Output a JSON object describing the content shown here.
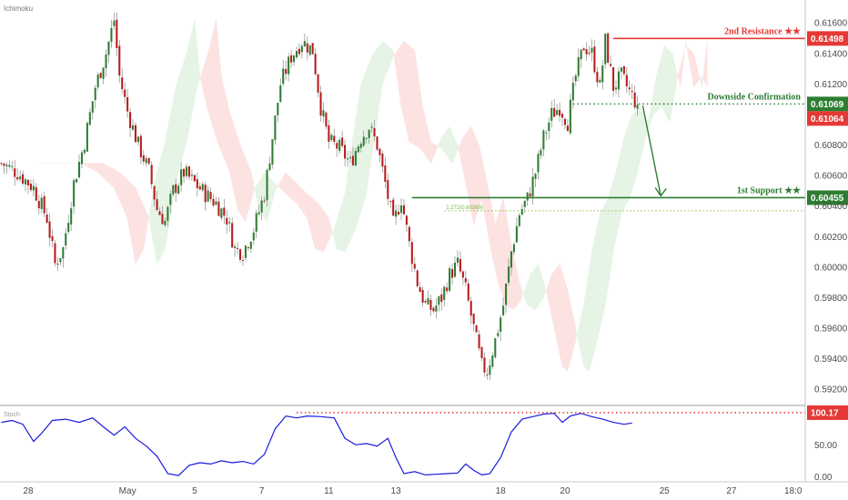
{
  "indicator_label": "Ichimoku",
  "stoch_label": "Stoch",
  "colors": {
    "up": "#2e7d32",
    "down": "#b71c1c",
    "wick": "#555555",
    "cloud_bull": "#e6f4e6",
    "cloud_bear": "#fde2e2",
    "resistance": "#e53935",
    "support": "#2e7d32",
    "stoch_line": "#1a1adf"
  },
  "chart_data": [
    {
      "type": "candlestick",
      "ylim": [
        0.591,
        0.6175
      ],
      "y_ticks": [
        "0.61600",
        "0.61400",
        "0.61200",
        "0.60800",
        "0.60600",
        "0.60400",
        "0.60200",
        "0.60000",
        "0.59800",
        "0.59600",
        "0.59400",
        "0.59200"
      ],
      "x_ticks": [
        "28",
        "May",
        "5",
        "7",
        "11",
        "13",
        "18",
        "20",
        "25",
        "27",
        "18:0"
      ],
      "price_path": [
        [
          0,
          0.6068
        ],
        [
          6,
          0.6062
        ],
        [
          12,
          0.6052
        ],
        [
          17,
          0.6032
        ],
        [
          20,
          0.6002
        ],
        [
          23,
          0.6012
        ],
        [
          27,
          0.6055
        ],
        [
          31,
          0.6082
        ],
        [
          35,
          0.6118
        ],
        [
          39,
          0.614
        ],
        [
          42,
          0.6162
        ],
        [
          44,
          0.6125
        ],
        [
          47,
          0.6102
        ],
        [
          51,
          0.608
        ],
        [
          55,
          0.6063
        ],
        [
          58,
          0.6038
        ],
        [
          61,
          0.603
        ],
        [
          64,
          0.605
        ],
        [
          68,
          0.6062
        ],
        [
          72,
          0.6055
        ],
        [
          76,
          0.6048
        ],
        [
          80,
          0.6042
        ],
        [
          84,
          0.6032
        ],
        [
          87,
          0.6012
        ],
        [
          90,
          0.601
        ],
        [
          94,
          0.6025
        ],
        [
          98,
          0.6048
        ],
        [
          101,
          0.6085
        ],
        [
          104,
          0.612
        ],
        [
          108,
          0.6138
        ],
        [
          112,
          0.6148
        ],
        [
          116,
          0.6142
        ],
        [
          119,
          0.6105
        ],
        [
          122,
          0.6082
        ],
        [
          126,
          0.6078
        ],
        [
          130,
          0.6068
        ],
        [
          134,
          0.6085
        ],
        [
          137,
          0.6092
        ],
        [
          140,
          0.608
        ],
        [
          143,
          0.6055
        ],
        [
          146,
          0.6028
        ],
        [
          149,
          0.6045
        ],
        [
          152,
          0.6015
        ],
        [
          155,
          0.599
        ],
        [
          158,
          0.5975
        ],
        [
          161,
          0.5972
        ],
        [
          164,
          0.598
        ],
        [
          167,
          0.5995
        ],
        [
          170,
          0.6002
        ],
        [
          173,
          0.5985
        ],
        [
          176,
          0.596
        ],
        [
          179,
          0.5935
        ],
        [
          181,
          0.5932
        ],
        [
          184,
          0.5952
        ],
        [
          187,
          0.5975
        ],
        [
          190,
          0.601
        ],
        [
          193,
          0.6035
        ],
        [
          196,
          0.6045
        ],
        [
          199,
          0.6062
        ],
        [
          202,
          0.6085
        ],
        [
          205,
          0.61
        ],
        [
          208,
          0.6105
        ],
        [
          211,
          0.6095
        ],
        [
          214,
          0.6125
        ],
        [
          217,
          0.6145
        ],
        [
          220,
          0.614
        ],
        [
          223,
          0.6118
        ],
        [
          225,
          0.6148
        ],
        [
          228,
          0.6118
        ],
        [
          231,
          0.6125
        ],
        [
          234,
          0.6115
        ],
        [
          237,
          0.6106
        ]
      ],
      "bars_total": 300,
      "levels": [
        {
          "name": "2nd Resistance ★★",
          "value": 0.61498,
          "tag": "0.61498",
          "color": "#e53935",
          "from_bar": 228
        },
        {
          "name": "Downside Confirmation",
          "value": 0.61069,
          "tag": "0.61069",
          "color": "#2e7d32",
          "from_bar": 213,
          "style": "dotted"
        },
        {
          "name": "1st Support ★★",
          "value": 0.60455,
          "tag": "0.60455",
          "color": "#2e7d32",
          "from_bar": 153
        }
      ],
      "current_price_tag": {
        "value": 0.61064,
        "tag": "0.61064",
        "color": "#e53935"
      },
      "fib_label": {
        "text": "1.272(0.60369)",
        "value": 0.60369,
        "from_bar": 165
      },
      "arrow": {
        "from_bar": 240,
        "from_value": 0.61069,
        "to_bar": 245,
        "to_value": 0.60455
      }
    },
    {
      "type": "line",
      "name": "Stoch",
      "ylim": [
        -5,
        110
      ],
      "y_ticks": [
        "50.00",
        "0.00"
      ],
      "level_tag": "100.17",
      "level_value": 100.17,
      "level_from_bar": 110,
      "series_path": [
        [
          0,
          85
        ],
        [
          4,
          88
        ],
        [
          8,
          82
        ],
        [
          12,
          55
        ],
        [
          15,
          68
        ],
        [
          19,
          88
        ],
        [
          24,
          90
        ],
        [
          29,
          85
        ],
        [
          34,
          92
        ],
        [
          38,
          78
        ],
        [
          42,
          65
        ],
        [
          46,
          78
        ],
        [
          50,
          60
        ],
        [
          54,
          48
        ],
        [
          58,
          32
        ],
        [
          62,
          5
        ],
        [
          66,
          2
        ],
        [
          70,
          18
        ],
        [
          74,
          22
        ],
        [
          78,
          20
        ],
        [
          82,
          25
        ],
        [
          86,
          22
        ],
        [
          90,
          24
        ],
        [
          94,
          20
        ],
        [
          98,
          35
        ],
        [
          102,
          75
        ],
        [
          106,
          95
        ],
        [
          110,
          92
        ],
        [
          114,
          95
        ],
        [
          119,
          94
        ],
        [
          124,
          92
        ],
        [
          128,
          60
        ],
        [
          132,
          50
        ],
        [
          136,
          52
        ],
        [
          140,
          48
        ],
        [
          144,
          60
        ],
        [
          147,
          30
        ],
        [
          150,
          5
        ],
        [
          154,
          8
        ],
        [
          158,
          3
        ],
        [
          162,
          4
        ],
        [
          166,
          5
        ],
        [
          170,
          6
        ],
        [
          173,
          20
        ],
        [
          176,
          10
        ],
        [
          179,
          3
        ],
        [
          182,
          5
        ],
        [
          186,
          30
        ],
        [
          190,
          70
        ],
        [
          194,
          90
        ],
        [
          198,
          94
        ],
        [
          202,
          98
        ],
        [
          206,
          99
        ],
        [
          209,
          85
        ],
        [
          212,
          95
        ],
        [
          216,
          99
        ],
        [
          220,
          94
        ],
        [
          224,
          90
        ],
        [
          228,
          85
        ],
        [
          232,
          82
        ],
        [
          235,
          84
        ]
      ]
    }
  ]
}
